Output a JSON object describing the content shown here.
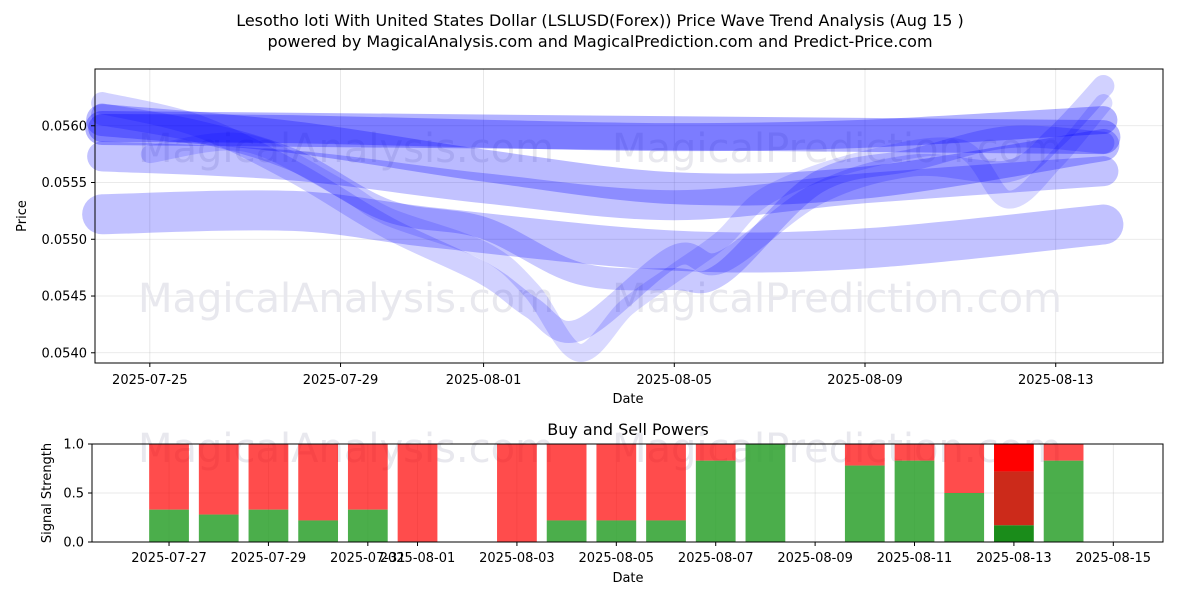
{
  "title": "Lesotho loti With United States Dollar (LSLUSD(Forex)) Price Wave Trend Analysis (Aug 15 )",
  "subtitle": "powered by MagicalAnalysis.com and MagicalPrediction.com and Predict-Price.com",
  "watermarks": [
    "MagicalAnalysis.com",
    "MagicalPrediction.com"
  ],
  "colors": {
    "wave": "#0000ff",
    "buy": "#2ca02c",
    "sell": "#ff0000",
    "grid": "#b0b0b0"
  },
  "chart_data": [
    {
      "type": "line",
      "xlabel": "Date",
      "ylabel": "Price",
      "x_ticks": [
        "2025-07-25",
        "2025-07-29",
        "2025-08-01",
        "2025-08-05",
        "2025-08-09",
        "2025-08-13"
      ],
      "y_ticks": [
        "0.0540",
        "0.0545",
        "0.0550",
        "0.0555",
        "0.0560"
      ],
      "xlim": [
        "2025-07-24",
        "2025-08-15"
      ],
      "ylim": [
        0.05391,
        0.0565
      ],
      "grid": true,
      "series": [
        {
          "width": 34,
          "opacity": 0.5,
          "points": [
            [
              "2025-07-24",
              0.05598
            ],
            [
              "2025-08-14",
              0.0559
            ]
          ]
        },
        {
          "width": 28,
          "opacity": 0.5,
          "points": [
            [
              "2025-07-24",
              0.05598
            ],
            [
              "2025-07-28",
              0.05597
            ],
            [
              "2025-08-01",
              0.05593
            ],
            [
              "2025-08-05",
              0.0559
            ],
            [
              "2025-08-09",
              0.05593
            ],
            [
              "2025-08-14",
              0.05605
            ]
          ]
        },
        {
          "width": 32,
          "opacity": 0.45,
          "points": [
            [
              "2025-07-24",
              0.05605
            ],
            [
              "2025-07-28",
              0.0559
            ],
            [
              "2025-08-01",
              0.05565
            ],
            [
              "2025-08-05",
              0.05545
            ],
            [
              "2025-08-09",
              0.0555
            ],
            [
              "2025-08-14",
              0.05583
            ]
          ]
        },
        {
          "width": 40,
          "opacity": 0.4,
          "points": [
            [
              "2025-07-24",
              0.05522
            ],
            [
              "2025-07-28",
              0.05525
            ],
            [
              "2025-07-31",
              0.0551
            ],
            [
              "2025-08-05",
              0.0549
            ],
            [
              "2025-08-09",
              0.05492
            ],
            [
              "2025-08-14",
              0.05513
            ]
          ]
        },
        {
          "width": 30,
          "opacity": 0.4,
          "points": [
            [
              "2025-07-24",
              0.05573
            ],
            [
              "2025-07-28",
              0.05565
            ],
            [
              "2025-08-01",
              0.05545
            ],
            [
              "2025-08-05",
              0.0553
            ],
            [
              "2025-08-09",
              0.05545
            ],
            [
              "2025-08-14",
              0.0556
            ]
          ]
        },
        {
          "width": 22,
          "opacity": 0.35,
          "points": [
            [
              "2025-07-24",
              0.0561
            ],
            [
              "2025-07-26",
              0.05595
            ],
            [
              "2025-07-28",
              0.0557
            ],
            [
              "2025-07-30",
              0.05525
            ],
            [
              "2025-08-01",
              0.0551
            ],
            [
              "2025-08-03",
              0.0547
            ],
            [
              "2025-08-05",
              0.05465
            ],
            [
              "2025-08-06",
              0.0547
            ],
            [
              "2025-08-08",
              0.0555
            ],
            [
              "2025-08-10",
              0.0557
            ],
            [
              "2025-08-12",
              0.0559
            ],
            [
              "2025-08-14",
              0.05585
            ]
          ]
        },
        {
          "width": 22,
          "opacity": 0.3,
          "points": [
            [
              "2025-07-24",
              0.0562
            ],
            [
              "2025-07-26",
              0.056
            ],
            [
              "2025-07-28",
              0.0556
            ],
            [
              "2025-07-30",
              0.0551
            ],
            [
              "2025-08-01",
              0.0547
            ],
            [
              "2025-08-02",
              0.0544
            ],
            [
              "2025-08-03",
              0.0542
            ],
            [
              "2025-08-05",
              0.05485
            ],
            [
              "2025-08-06",
              0.0548
            ],
            [
              "2025-08-08",
              0.0554
            ],
            [
              "2025-08-10",
              0.05565
            ],
            [
              "2025-08-12",
              0.0556
            ],
            [
              "2025-08-13",
              0.0559
            ],
            [
              "2025-08-14",
              0.05635
            ]
          ]
        },
        {
          "width": 18,
          "opacity": 0.25,
          "points": [
            [
              "2025-07-25",
              0.05575
            ],
            [
              "2025-07-27",
              0.05585
            ],
            [
              "2025-07-29",
              0.05545
            ],
            [
              "2025-07-30",
              0.0552
            ],
            [
              "2025-08-01",
              0.0549
            ],
            [
              "2025-08-02",
              0.05455
            ],
            [
              "2025-08-03",
              0.054
            ],
            [
              "2025-08-04",
              0.0544
            ],
            [
              "2025-08-05",
              0.0547
            ],
            [
              "2025-08-06",
              0.055
            ],
            [
              "2025-08-07",
              0.0554
            ],
            [
              "2025-08-09",
              0.0557
            ],
            [
              "2025-08-11",
              0.0558
            ],
            [
              "2025-08-12",
              0.05535
            ],
            [
              "2025-08-13",
              0.0557
            ],
            [
              "2025-08-14",
              0.0562
            ]
          ]
        }
      ]
    },
    {
      "type": "bar",
      "title": "Buy and Sell Powers",
      "xlabel": "Date",
      "ylabel": "Signal Strength",
      "x_ticks": [
        "2025-07-27",
        "2025-07-29",
        "2025-07-31",
        "2025-08-01",
        "2025-08-03",
        "2025-08-05",
        "2025-08-07",
        "2025-08-09",
        "2025-08-11",
        "2025-08-13",
        "2025-08-15"
      ],
      "y_ticks": [
        "0.0",
        "0.5",
        "1.0"
      ],
      "xlim": [
        "2025-07-25",
        "2025-08-16"
      ],
      "ylim": [
        0,
        1
      ],
      "grid": true,
      "bars": [
        {
          "date": "2025-07-27",
          "buy": 0.33
        },
        {
          "date": "2025-07-28",
          "buy": 0.28
        },
        {
          "date": "2025-07-29",
          "buy": 0.33
        },
        {
          "date": "2025-07-30",
          "buy": 0.22
        },
        {
          "date": "2025-07-31",
          "buy": 0.33
        },
        {
          "date": "2025-08-01",
          "buy": 0.0
        },
        {
          "date": "2025-08-03",
          "buy": 0.0
        },
        {
          "date": "2025-08-04",
          "buy": 0.22
        },
        {
          "date": "2025-08-05",
          "buy": 0.22
        },
        {
          "date": "2025-08-06",
          "buy": 0.22
        },
        {
          "date": "2025-08-07",
          "buy": 0.83
        },
        {
          "date": "2025-08-08",
          "buy": 1.0
        },
        {
          "date": "2025-08-10",
          "buy": 0.78
        },
        {
          "date": "2025-08-11",
          "buy": 0.83
        },
        {
          "date": "2025-08-12",
          "buy": 0.5
        },
        {
          "date": "2025-08-13",
          "buy": 0.17,
          "mid": 0.72,
          "highlight": true
        },
        {
          "date": "2025-08-14",
          "buy": 0.83
        }
      ]
    }
  ]
}
